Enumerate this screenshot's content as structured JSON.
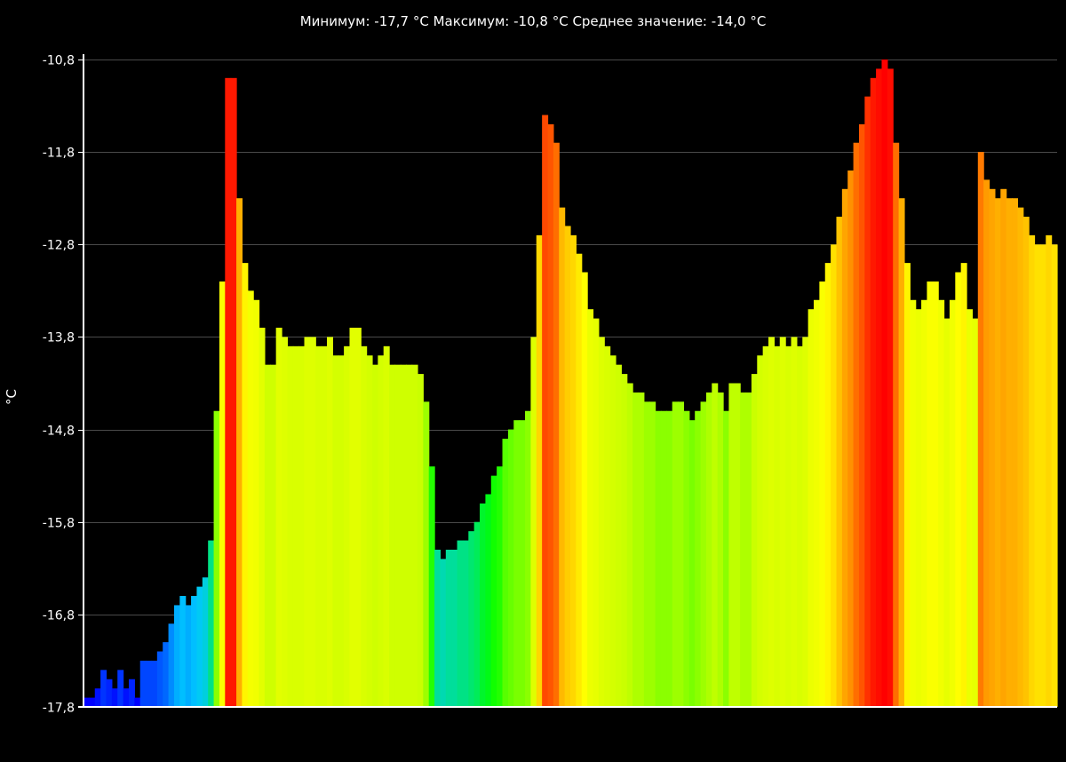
{
  "chart_data": {
    "type": "bar",
    "title": "Минимум:  -17,7  °C Максимум:  -10,8  °C Среднее  значение:  -14,0  °C",
    "ylabel": "°C",
    "xlabel": "",
    "ylim": [
      -17.8,
      -10.8
    ],
    "yticks": [
      -10.8,
      -11.8,
      -12.8,
      -13.8,
      -14.8,
      -15.8,
      -16.8,
      -17.8
    ],
    "ytick_labels": [
      "-10,8",
      "-11,8",
      "-12,8",
      "-13,8",
      "-14,8",
      "-15,8",
      "-16,8",
      "-17,8"
    ],
    "grid": true,
    "color_scale": {
      "min": -17.7,
      "max": -10.8,
      "colors": [
        "#0000ff",
        "#00c8ff",
        "#00ff00",
        "#c8ff00",
        "#ffff00",
        "#ff8c00",
        "#ff0000"
      ]
    },
    "values": [
      -17.7,
      -17.7,
      -17.6,
      -17.4,
      -17.5,
      -17.6,
      -17.4,
      -17.6,
      -17.5,
      -17.7,
      -17.3,
      -17.3,
      -17.3,
      -17.2,
      -17.1,
      -16.9,
      -16.7,
      -16.6,
      -16.7,
      -16.6,
      -16.5,
      -16.4,
      -16.0,
      -14.6,
      -13.2,
      -11.0,
      -11.0,
      -12.3,
      -13.0,
      -13.3,
      -13.4,
      -13.7,
      -14.1,
      -14.1,
      -13.7,
      -13.8,
      -13.9,
      -13.9,
      -13.9,
      -13.8,
      -13.8,
      -13.9,
      -13.9,
      -13.8,
      -14.0,
      -14.0,
      -13.9,
      -13.7,
      -13.7,
      -13.9,
      -14.0,
      -14.1,
      -14.0,
      -13.9,
      -14.1,
      -14.1,
      -14.1,
      -14.1,
      -14.1,
      -14.2,
      -14.5,
      -15.2,
      -16.1,
      -16.2,
      -16.1,
      -16.1,
      -16.0,
      -16.0,
      -15.9,
      -15.8,
      -15.6,
      -15.5,
      -15.3,
      -15.2,
      -14.9,
      -14.8,
      -14.7,
      -14.7,
      -14.6,
      -13.8,
      -12.7,
      -11.4,
      -11.5,
      -11.7,
      -12.4,
      -12.6,
      -12.7,
      -12.9,
      -13.1,
      -13.5,
      -13.6,
      -13.8,
      -13.9,
      -14.0,
      -14.1,
      -14.2,
      -14.3,
      -14.4,
      -14.4,
      -14.5,
      -14.5,
      -14.6,
      -14.6,
      -14.6,
      -14.5,
      -14.5,
      -14.6,
      -14.7,
      -14.6,
      -14.5,
      -14.4,
      -14.3,
      -14.4,
      -14.6,
      -14.3,
      -14.3,
      -14.4,
      -14.4,
      -14.2,
      -14.0,
      -13.9,
      -13.8,
      -13.9,
      -13.8,
      -13.9,
      -13.8,
      -13.9,
      -13.8,
      -13.5,
      -13.4,
      -13.2,
      -13.0,
      -12.8,
      -12.5,
      -12.2,
      -12.0,
      -11.7,
      -11.5,
      -11.2,
      -11.0,
      -10.9,
      -10.8,
      -10.9,
      -11.7,
      -12.3,
      -13.0,
      -13.4,
      -13.5,
      -13.4,
      -13.2,
      -13.2,
      -13.4,
      -13.6,
      -13.4,
      -13.1,
      -13.0,
      -13.5,
      -13.6,
      -11.8,
      -12.1,
      -12.2,
      -12.3,
      -12.2,
      -12.3,
      -12.3,
      -12.4,
      -12.5,
      -12.7,
      -12.8,
      -12.8,
      -12.7,
      -12.8
    ]
  }
}
